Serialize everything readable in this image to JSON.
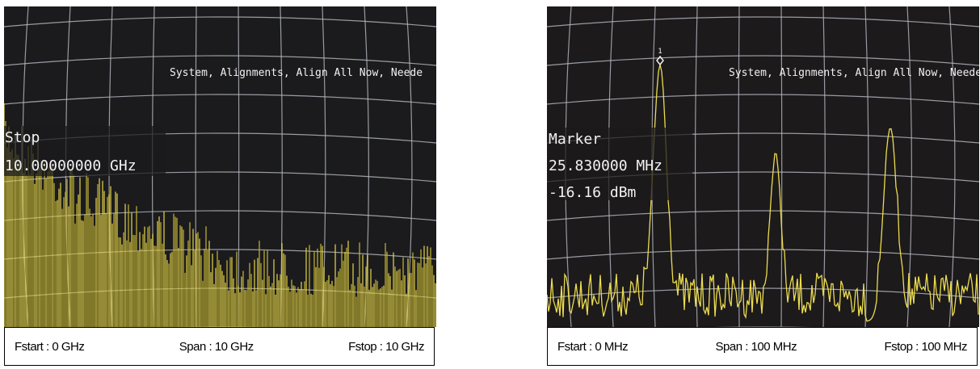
{
  "panels": [
    {
      "screen": {
        "message": "System, Alignments, Align All Now, Neede",
        "readout": [
          "Stop",
          "10.00000000 GHz"
        ]
      },
      "caption": {
        "start": "Fstart : 0 GHz",
        "span": "Span : 10 GHz",
        "stop": "Fstop : 10 GHz"
      }
    },
    {
      "screen": {
        "message": "System, Alignments, Align All Now, Neede",
        "marker_number": "1",
        "readout": [
          "Marker",
          "25.830000 MHz",
          "-16.16 dBm"
        ]
      },
      "caption": {
        "start": "Fstart : 0 MHz",
        "span": "Span : 100 MHz",
        "stop": "Fstop : 100 MHz"
      }
    }
  ]
}
